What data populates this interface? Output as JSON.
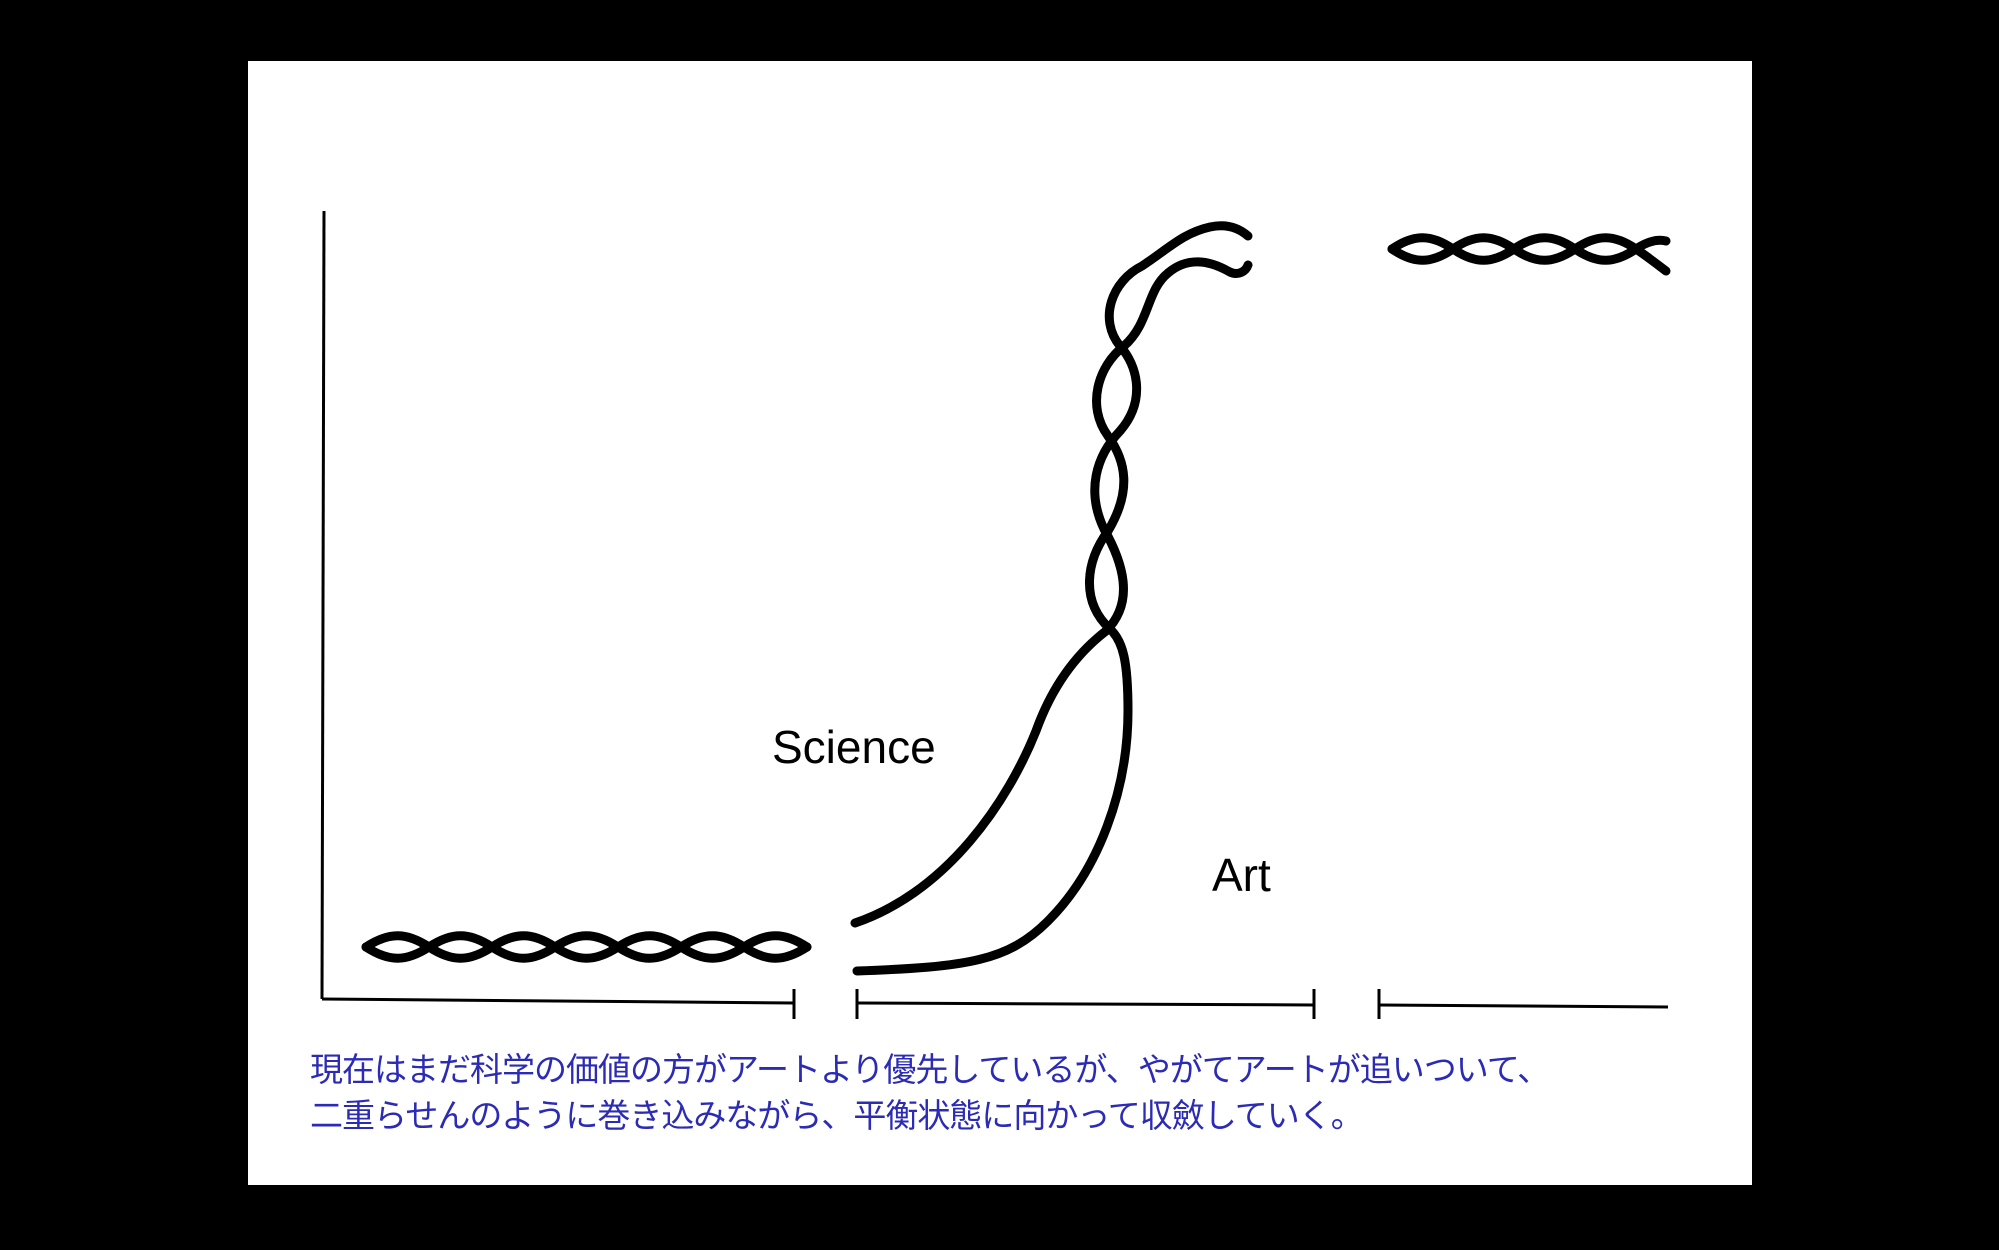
{
  "labels": {
    "science": "Science",
    "art": "Art"
  },
  "caption": {
    "line1": "現在はまだ科学の価値の方がアートより優先しているが、やがてアートが追いついて、",
    "line2": "二重らせんのように巻き込みながら、平衡状態に向かって収斂していく。"
  },
  "colors": {
    "background": "#000000",
    "slide": "#ffffff",
    "ink": "#000000",
    "caption": "#2b2bb5"
  }
}
